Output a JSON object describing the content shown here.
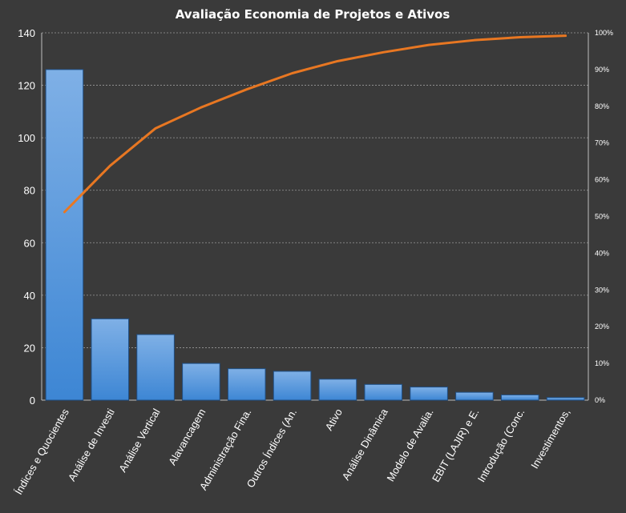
{
  "chart_data": {
    "type": "bar",
    "title": "Avaliação Economia de Projetos e Ativos",
    "categories": [
      "Índices e Quocientes",
      "Análise de Investi",
      "Análise Vertical",
      "Alavancagem",
      "Administração Fina.",
      "Outros Índices (An.",
      "Ativo",
      "Análise Dinâmica",
      "Modelo de Avalia.",
      "EBIT (LAJIR) e E.",
      "Introdução (Conc.",
      "Investimentos,"
    ],
    "series": [
      {
        "type": "bar",
        "values": [
          126,
          31,
          25,
          14,
          12,
          11,
          8,
          6,
          5,
          3,
          2,
          1
        ]
      },
      {
        "type": "line",
        "axis": "right",
        "values": [
          51.2,
          63.8,
          74.0,
          79.7,
          84.6,
          89.0,
          92.3,
          94.7,
          96.7,
          98.0,
          98.8,
          99.2
        ]
      }
    ],
    "ylim": [
      0,
      140
    ],
    "yticks": [
      0,
      20,
      40,
      60,
      80,
      100,
      120,
      140
    ],
    "y2lim": [
      0,
      100
    ],
    "y2ticks": [
      "0%",
      "10%",
      "20%",
      "30%",
      "40%",
      "50%",
      "60%",
      "70%",
      "80%",
      "90%",
      "100%"
    ],
    "grid": true,
    "legend": "none",
    "colors": {
      "background": "#3a3a3a",
      "bar_top": "#7fb0e6",
      "bar_bottom": "#3d86d4",
      "bar_stroke": "#1f4f85",
      "line": "#e87722",
      "grid": "#9a9a9a",
      "text": "#ffffff"
    }
  }
}
